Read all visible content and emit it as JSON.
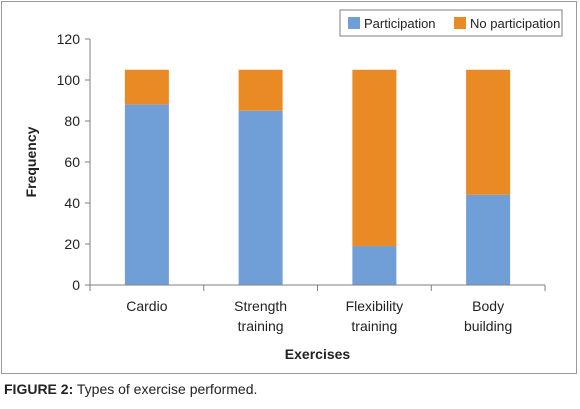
{
  "caption": {
    "label": "FIGURE 2:",
    "text": "Types of exercise performed."
  },
  "chart_data": {
    "type": "bar",
    "stacked": true,
    "categories": [
      [
        "Cardio"
      ],
      [
        "Strength",
        "training"
      ],
      [
        "Flexibility",
        "training"
      ],
      [
        "Body",
        "building"
      ]
    ],
    "series": [
      {
        "name": "Participation",
        "color": "#6f9fd6",
        "values": [
          88,
          85,
          19,
          44
        ]
      },
      {
        "name": "No participation",
        "color": "#ea8a24",
        "values": [
          17,
          20,
          86,
          61
        ]
      }
    ],
    "xlabel": "Exercises",
    "ylabel": "Frequency",
    "ylim": [
      0,
      120
    ],
    "yticks": [
      0,
      20,
      40,
      60,
      80,
      100,
      120
    ],
    "legend_position": "top-right",
    "grid": false
  }
}
